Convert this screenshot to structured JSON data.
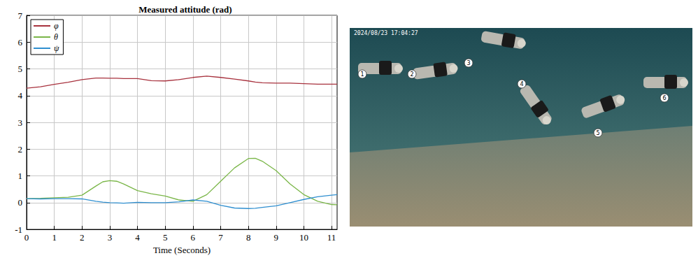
{
  "chart_data": {
    "type": "line",
    "title": "Measured attitude (rad)",
    "x_label": "Time (Seconds)",
    "x": [
      0,
      0.5,
      1,
      1.5,
      2,
      2.5,
      2.75,
      3,
      3.25,
      3.5,
      4,
      4.5,
      5,
      5.5,
      6,
      6.5,
      7,
      7.5,
      8,
      8.25,
      8.5,
      9,
      9.5,
      10,
      10.5,
      11,
      11.2
    ],
    "series": [
      {
        "name": "φ",
        "color": "#a8323e",
        "values": [
          4.28,
          4.33,
          4.42,
          4.5,
          4.6,
          4.66,
          4.66,
          4.65,
          4.65,
          4.64,
          4.64,
          4.56,
          4.55,
          4.6,
          4.68,
          4.73,
          4.68,
          4.62,
          4.55,
          4.51,
          4.48,
          4.47,
          4.47,
          4.45,
          4.43,
          4.43,
          4.43
        ]
      },
      {
        "name": "θ",
        "color": "#7ab648",
        "values": [
          0.15,
          0.16,
          0.18,
          0.2,
          0.28,
          0.62,
          0.78,
          0.82,
          0.8,
          0.7,
          0.45,
          0.33,
          0.25,
          0.1,
          0.05,
          0.3,
          0.8,
          1.3,
          1.65,
          1.66,
          1.55,
          1.2,
          0.7,
          0.3,
          0.05,
          -0.07,
          -0.08
        ]
      },
      {
        "name": "ψ",
        "color": "#2f8fd0",
        "values": [
          0.15,
          0.14,
          0.15,
          0.15,
          0.14,
          0.05,
          0.02,
          0.0,
          -0.01,
          -0.02,
          0.01,
          0.0,
          0.0,
          0.03,
          0.1,
          0.05,
          -0.1,
          -0.2,
          -0.22,
          -0.21,
          -0.18,
          -0.12,
          0.0,
          0.12,
          0.22,
          0.28,
          0.3
        ]
      }
    ],
    "xlim": [
      0,
      11.2
    ],
    "xticks": [
      0,
      1,
      2,
      3,
      4,
      5,
      6,
      7,
      8,
      9,
      10,
      11
    ],
    "ylim": [
      -1,
      7
    ],
    "yticks": [
      -1,
      0,
      1,
      2,
      3,
      4,
      5,
      6,
      7
    ],
    "grid": true,
    "legend": "top-left"
  },
  "photo": {
    "timestamp": "2024/08/23 17:04:27",
    "markers": [
      "1",
      "2",
      "3",
      "4",
      "5",
      "6"
    ]
  }
}
